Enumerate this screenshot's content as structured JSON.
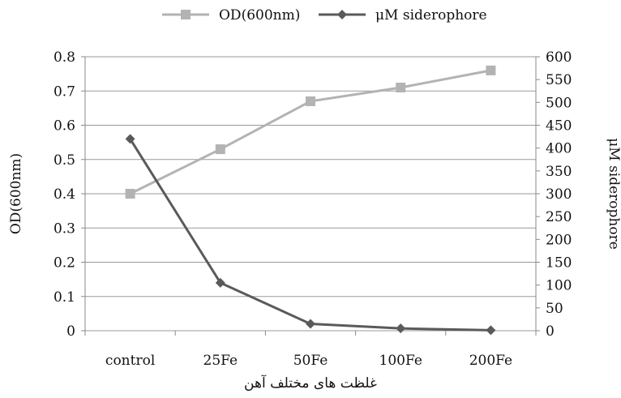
{
  "chart_data": {
    "type": "line",
    "categories": [
      "control",
      "25Fe",
      "50Fe",
      "100Fe",
      "200Fe"
    ],
    "series": [
      {
        "name": "OD(600nm)",
        "axis": "left",
        "marker": "square",
        "color": "#b3b3b3",
        "values": [
          0.4,
          0.53,
          0.67,
          0.71,
          0.76
        ]
      },
      {
        "name": "μM siderophore",
        "axis": "right",
        "marker": "diamond",
        "color": "#5a5a5a",
        "values": [
          420,
          105,
          15,
          5,
          1
        ]
      }
    ],
    "y_left": {
      "label": "OD(600nm)",
      "ylim": [
        0,
        0.8
      ],
      "ticks": [
        "0",
        "0.1",
        "0.2",
        "0.3",
        "0.4",
        "0.5",
        "0.6",
        "0.7",
        "0.8"
      ]
    },
    "y_right": {
      "label": "μM siderophore",
      "ylim": [
        0,
        600
      ],
      "ticks": [
        "0",
        "50",
        "100",
        "150",
        "200",
        "250",
        "300",
        "350",
        "400",
        "450",
        "500",
        "550",
        "600"
      ]
    },
    "xlabel": "غلظت های مختلف آهن",
    "grid": true,
    "legend_position": "top-center"
  }
}
